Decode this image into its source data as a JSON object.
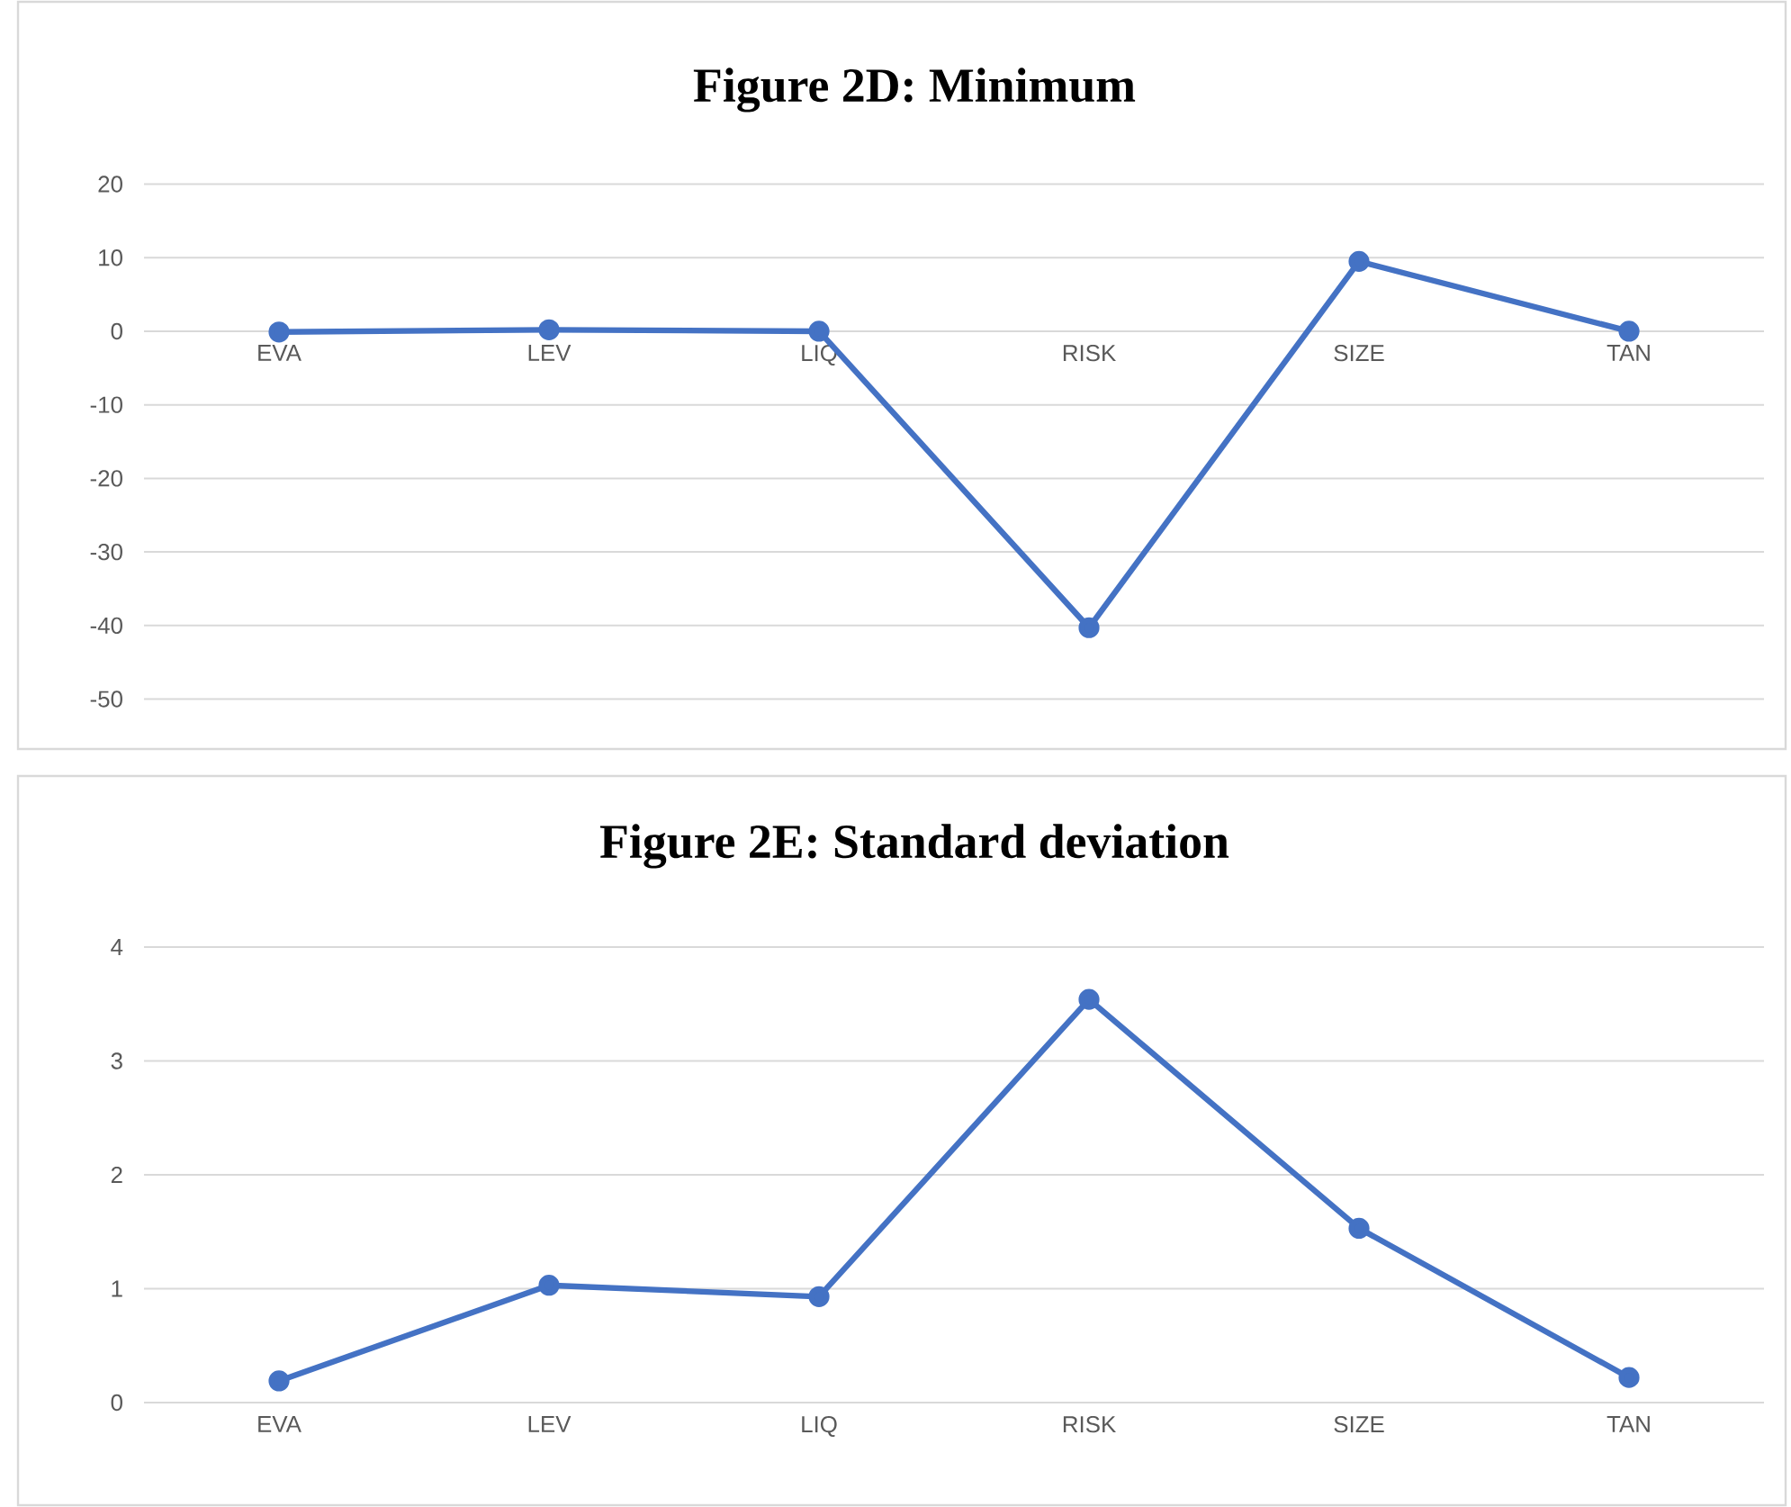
{
  "chart_data": [
    {
      "type": "line",
      "title": "Figure 2D: Minimum",
      "categories": [
        "EVA",
        "LEV",
        "LIQ",
        "RISK",
        "SIZE",
        "TAN"
      ],
      "values": [
        -0.1,
        0.2,
        0.0,
        -40.3,
        9.5,
        0.0
      ],
      "color": "#4472c4",
      "ylim": [
        -50,
        20
      ],
      "yticks": [
        -50,
        -40,
        -30,
        -20,
        -10,
        0,
        10,
        20
      ],
      "grid": "y",
      "marker": "circle",
      "line_style": "solid"
    },
    {
      "type": "line",
      "title": "Figure 2E: Standard deviation",
      "categories": [
        "EVA",
        "LEV",
        "LIQ",
        "RISK",
        "SIZE",
        "TAN"
      ],
      "values": [
        0.19,
        1.03,
        0.93,
        3.54,
        1.53,
        0.22
      ],
      "color": "#4472c4",
      "ylim": [
        0,
        4
      ],
      "yticks": [
        0,
        1,
        2,
        3,
        4
      ],
      "grid": "y",
      "marker": "circle",
      "line_style": "solid"
    }
  ]
}
